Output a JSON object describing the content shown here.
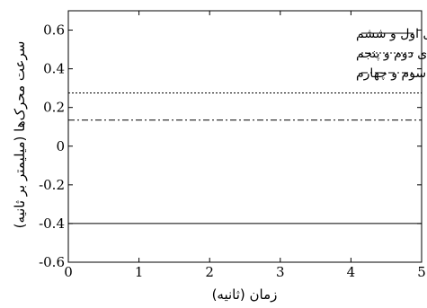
{
  "chart_data": {
    "type": "line",
    "xlabel": "زمان (ثانیه)",
    "ylabel": "سرعت محرک‌ها (میلیمتر بر ثانیه)",
    "xlim": [
      0,
      5
    ],
    "ylim": [
      -0.6,
      0.7
    ],
    "x_ticks": [
      0,
      1,
      2,
      3,
      4,
      5
    ],
    "y_ticks": [
      -0.6,
      -0.4,
      -0.2,
      0,
      0.2,
      0.4,
      0.6
    ],
    "x_tick_labels": [
      "0",
      "1",
      "2",
      "3",
      "4",
      "5"
    ],
    "y_tick_labels": [
      "-0.6",
      "-0.4",
      "-0.2",
      "0",
      "0.2",
      "0.4",
      "0.6"
    ],
    "grid": false,
    "legend_position": "top-right",
    "series": [
      {
        "name": "پایه‌ی اول و ششم",
        "style": "solid",
        "color": "#000000",
        "x": [
          0,
          5
        ],
        "y": [
          -0.4,
          -0.4
        ]
      },
      {
        "name": "پایه‌ی دوم و پنجم",
        "style": "dotted",
        "color": "#000000",
        "x": [
          0,
          5
        ],
        "y": [
          0.275,
          0.275
        ]
      },
      {
        "name": "پایه‌ی سوم و چهارم",
        "style": "dashdot",
        "color": "#000000",
        "x": [
          0,
          5
        ],
        "y": [
          0.135,
          0.135
        ]
      }
    ]
  }
}
